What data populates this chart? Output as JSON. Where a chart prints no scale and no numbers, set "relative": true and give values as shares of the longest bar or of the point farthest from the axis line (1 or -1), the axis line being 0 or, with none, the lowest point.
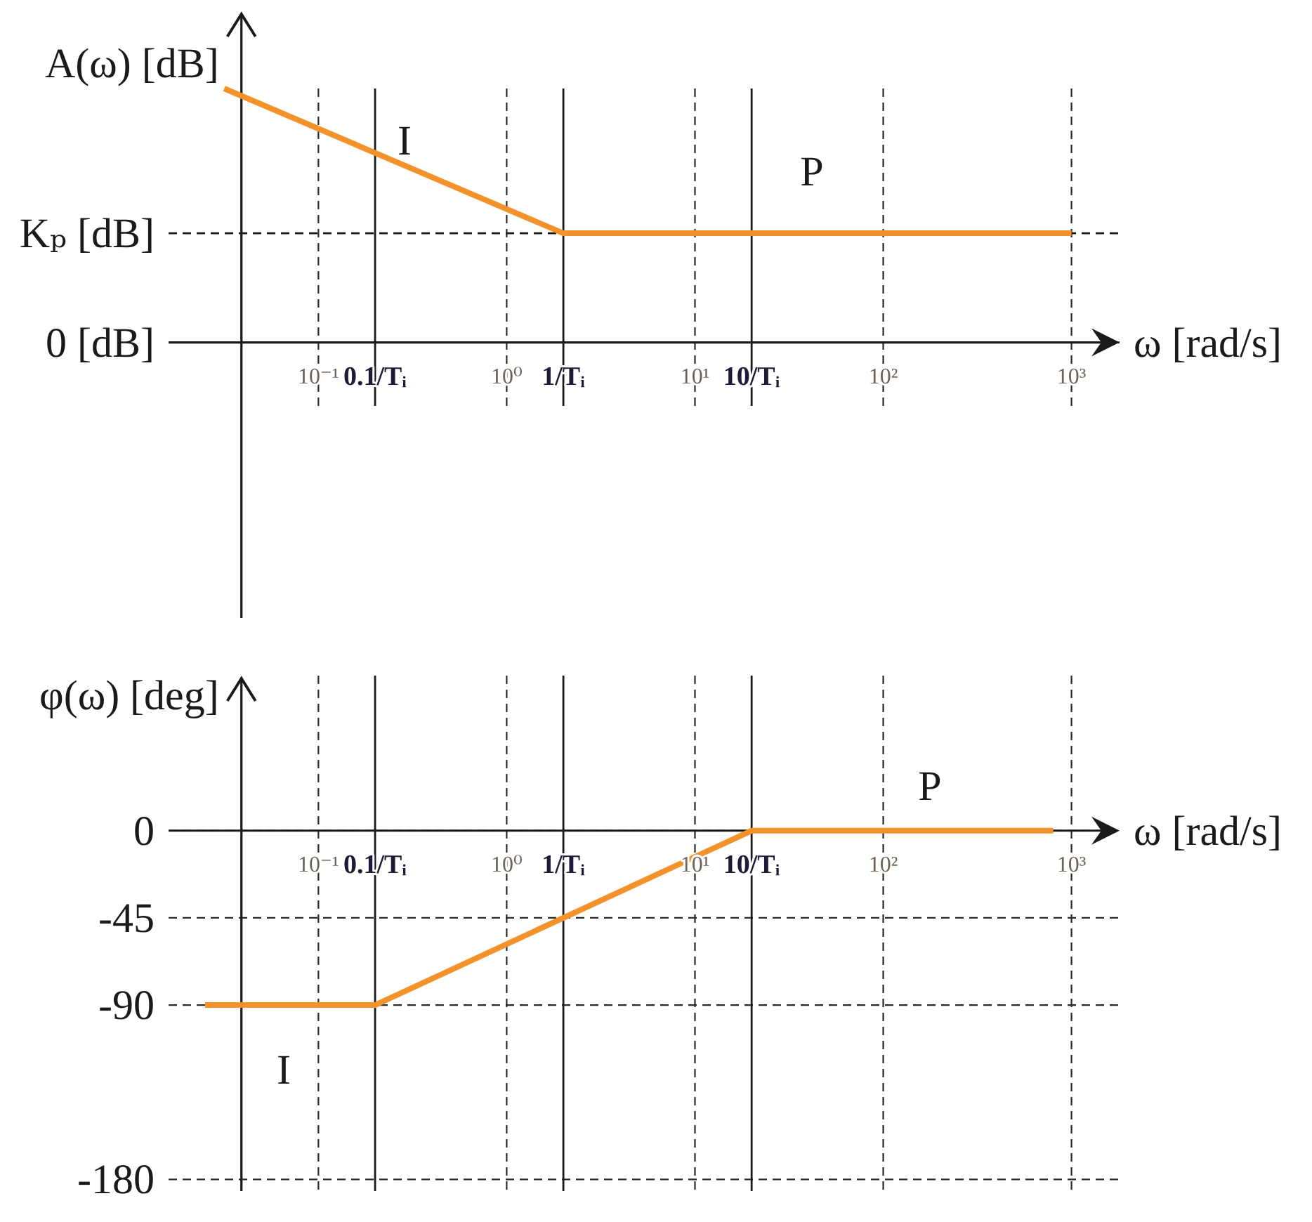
{
  "chart_data": [
    {
      "type": "line",
      "relative": true,
      "ylabel": "A(ω) [dB]",
      "xlabel": "ω [rad/s]",
      "log": "x",
      "xlim": [
        0.016,
        1800
      ],
      "xticks": [
        {
          "value": 0.1,
          "label": "10⁻¹"
        },
        {
          "value": 1,
          "label": "10⁰"
        },
        {
          "value": 10,
          "label": "10¹"
        },
        {
          "value": 100,
          "label": "10²"
        },
        {
          "value": 1000,
          "label": "10³"
        }
      ],
      "grid": "x",
      "series": [
        {
          "color": "#f3922a",
          "x": [
            0.0316,
            2,
            1000
          ],
          "values": [
            1,
            0.43,
            0.43
          ]
        }
      ],
      "ref_lines": [
        {
          "axis": "x",
          "value": 0.039,
          "line_style": "solid"
        },
        {
          "axis": "y",
          "value": 0,
          "label": "0 [dB]",
          "line_style": "solid"
        },
        {
          "axis": "y",
          "value": 0.43,
          "label": "Kₚ [dB]",
          "line_style": "dashed"
        },
        {
          "axis": "x",
          "value": 0.2,
          "label": "0.1/Tᵢ",
          "line_style": "solid"
        },
        {
          "axis": "x",
          "value": 2,
          "label": "1/Tᵢ",
          "line_style": "solid"
        },
        {
          "axis": "x",
          "value": 20,
          "label": "10/Tᵢ",
          "line_style": "solid"
        }
      ],
      "annotations": [
        "I",
        "P"
      ]
    },
    {
      "type": "line",
      "ylabel": "φ(ω) [deg]",
      "xlabel": "ω [rad/s]",
      "log": "x",
      "xlim": [
        0.016,
        1800
      ],
      "xticks": [
        {
          "value": 0.1,
          "label": "10⁻¹"
        },
        {
          "value": 1,
          "label": "10⁰"
        },
        {
          "value": 10,
          "label": "10¹"
        },
        {
          "value": 100,
          "label": "10²"
        },
        {
          "value": 1000,
          "label": "10³"
        }
      ],
      "ylim": [
        -186,
        80
      ],
      "yticks": [
        -180,
        -90,
        -45,
        0
      ],
      "grid": true,
      "series": [
        {
          "color": "#f3922a",
          "x": [
            0.025,
            0.2,
            20,
            800
          ],
          "values": [
            -90,
            -90,
            0,
            0
          ]
        }
      ],
      "ref_lines": [
        {
          "axis": "x",
          "value": 0.039,
          "line_style": "solid"
        },
        {
          "axis": "x",
          "value": 0.2,
          "label": "0.1/Tᵢ",
          "line_style": "solid"
        },
        {
          "axis": "x",
          "value": 2,
          "label": "1/Tᵢ",
          "line_style": "solid"
        },
        {
          "axis": "x",
          "value": 20,
          "label": "10/Tᵢ",
          "line_style": "solid"
        }
      ],
      "annotations": [
        "P",
        "I"
      ]
    }
  ]
}
